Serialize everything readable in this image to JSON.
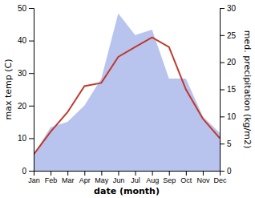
{
  "chart_data": {
    "type": "line",
    "x_label": "date (month)",
    "y_label": "max temp (C)",
    "y2_label": "med. precipitation (kg/m2)",
    "categories": [
      "Jan",
      "Feb",
      "Mar",
      "Apr",
      "May",
      "Jun",
      "Jul",
      "Aug",
      "Sep",
      "Oct",
      "Nov",
      "Dec"
    ],
    "series": [
      {
        "type": "area",
        "color": "#b8c4ee",
        "axis": "y2",
        "values": [
          3,
          8,
          9,
          12,
          17,
          29,
          25,
          26,
          17,
          17,
          10,
          7
        ]
      },
      {
        "type": "line",
        "color": "#c0392b",
        "values": [
          5,
          12,
          18,
          26,
          27,
          35,
          38,
          41,
          38,
          25,
          16,
          10
        ]
      }
    ],
    "ylim": [
      0,
      50
    ],
    "yticks": [
      0,
      10,
      20,
      30,
      40,
      50
    ],
    "y2lim": [
      0,
      30
    ],
    "y2ticks": [
      0,
      5,
      10,
      15,
      20,
      25,
      30
    ],
    "grid": false
  }
}
